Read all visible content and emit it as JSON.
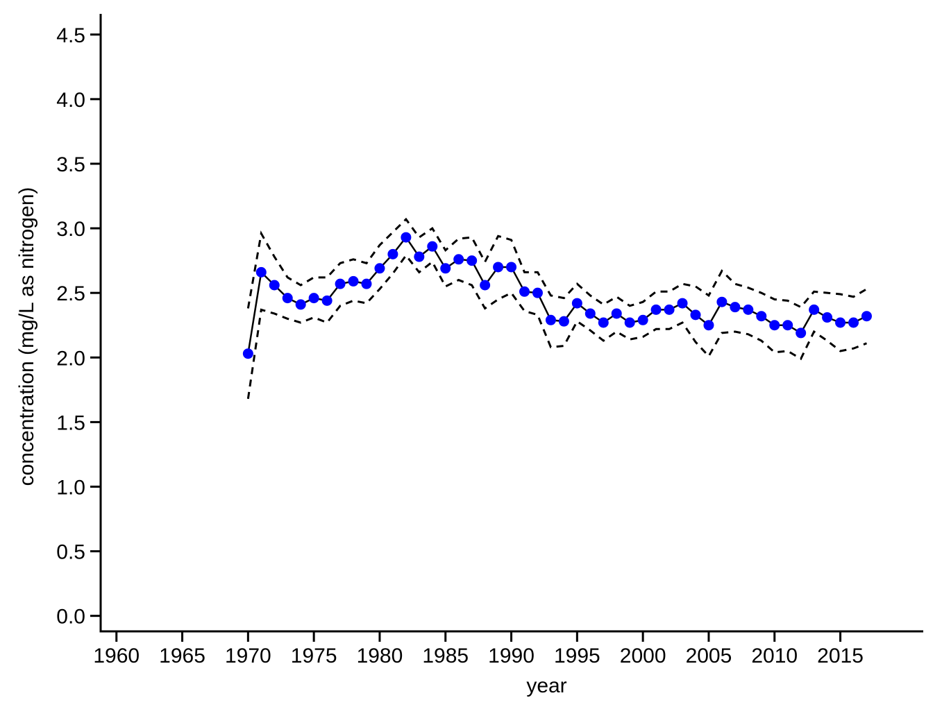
{
  "chart_data": {
    "type": "line",
    "title": "",
    "xlabel": "year",
    "ylabel": "concentration (mg/L as nitrogen)",
    "xlim": [
      1958.8,
      2021.3
    ],
    "ylim": [
      -0.12,
      4.66
    ],
    "x_ticks": [
      1960,
      1965,
      1970,
      1975,
      1980,
      1985,
      1990,
      1995,
      2000,
      2005,
      2010,
      2015
    ],
    "x_tick_labels": [
      "1960",
      "1965",
      "1970",
      "1975",
      "1980",
      "1985",
      "1990",
      "1995",
      "2000",
      "2005",
      "2010",
      "2015"
    ],
    "y_ticks": [
      0.0,
      0.5,
      1.0,
      1.5,
      2.0,
      2.5,
      3.0,
      3.5,
      4.0,
      4.5
    ],
    "y_tick_labels": [
      "0.0",
      "0.5",
      "1.0",
      "1.5",
      "2.0",
      "2.5",
      "3.0",
      "3.5",
      "4.0",
      "4.5"
    ],
    "grid": false,
    "legend": "none",
    "x": [
      1970,
      1971,
      1972,
      1973,
      1974,
      1975,
      1976,
      1977,
      1978,
      1979,
      1980,
      1981,
      1982,
      1983,
      1984,
      1985,
      1986,
      1987,
      1988,
      1989,
      1990,
      1991,
      1992,
      1993,
      1994,
      1995,
      1996,
      1997,
      1998,
      1999,
      2000,
      2001,
      2002,
      2003,
      2004,
      2005,
      2006,
      2007,
      2008,
      2009,
      2010,
      2011,
      2012,
      2013,
      2014,
      2015,
      2016,
      2017
    ],
    "series": [
      {
        "style": "solid-line-with-markers",
        "color": "#000000",
        "marker_color": "#0000ff",
        "values": [
          2.03,
          2.66,
          2.56,
          2.46,
          2.41,
          2.46,
          2.44,
          2.57,
          2.59,
          2.57,
          2.69,
          2.8,
          2.93,
          2.78,
          2.86,
          2.69,
          2.76,
          2.75,
          2.56,
          2.7,
          2.7,
          2.51,
          2.5,
          2.29,
          2.28,
          2.42,
          2.34,
          2.27,
          2.34,
          2.27,
          2.29,
          2.37,
          2.37,
          2.42,
          2.33,
          2.25,
          2.43,
          2.39,
          2.37,
          2.32,
          2.25,
          2.25,
          2.19,
          2.37,
          2.31,
          2.27,
          2.27,
          2.32
        ]
      },
      {
        "style": "dashed",
        "color": "#000000",
        "values": [
          2.38,
          2.96,
          2.78,
          2.62,
          2.56,
          2.62,
          2.62,
          2.73,
          2.76,
          2.73,
          2.87,
          2.97,
          3.07,
          2.93,
          3.0,
          2.83,
          2.92,
          2.93,
          2.74,
          2.94,
          2.91,
          2.66,
          2.66,
          2.48,
          2.46,
          2.57,
          2.48,
          2.41,
          2.47,
          2.4,
          2.43,
          2.51,
          2.51,
          2.57,
          2.55,
          2.48,
          2.67,
          2.57,
          2.54,
          2.5,
          2.45,
          2.44,
          2.39,
          2.51,
          2.5,
          2.49,
          2.47,
          2.53
        ]
      },
      {
        "style": "dashed",
        "color": "#000000",
        "values": [
          1.68,
          2.37,
          2.34,
          2.3,
          2.27,
          2.31,
          2.27,
          2.4,
          2.44,
          2.42,
          2.53,
          2.65,
          2.79,
          2.66,
          2.74,
          2.55,
          2.6,
          2.56,
          2.38,
          2.45,
          2.5,
          2.36,
          2.33,
          2.08,
          2.09,
          2.28,
          2.21,
          2.13,
          2.2,
          2.14,
          2.16,
          2.22,
          2.22,
          2.27,
          2.12,
          2.01,
          2.19,
          2.2,
          2.18,
          2.13,
          2.04,
          2.05,
          1.99,
          2.2,
          2.13,
          2.05,
          2.07,
          2.11
        ]
      }
    ]
  }
}
